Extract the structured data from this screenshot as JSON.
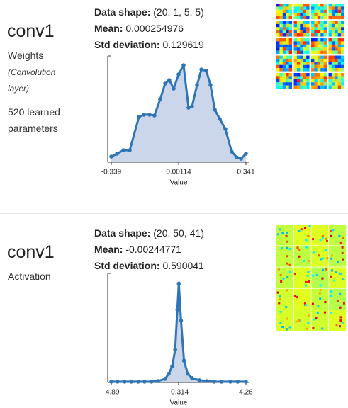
{
  "panels": [
    {
      "name": "conv1",
      "kind": "Weights",
      "note": "(Convolution layer)",
      "params": "520 learned parameters",
      "stats": [
        {
          "label": "Data shape:",
          "value": "(20, 1, 5, 5)"
        },
        {
          "label": "Mean:",
          "value": "0.000254976"
        },
        {
          "label": "Std deviation:",
          "value": "0.129619"
        }
      ]
    },
    {
      "name": "conv1",
      "kind": "Activation",
      "stats": [
        {
          "label": "Data shape:",
          "value": "(20, 50, 41)"
        },
        {
          "label": "Mean:",
          "value": "-0.00244771"
        },
        {
          "label": "Std deviation:",
          "value": "0.590041"
        }
      ]
    }
  ],
  "chart_data": [
    {
      "type": "area",
      "xlabel": "Value",
      "color": "#2e75b6",
      "fill": "#ccd6ea",
      "xlim": [
        -0.339,
        0.341
      ],
      "xticks": [
        -0.339,
        0.00114,
        0.341
      ],
      "ylim": [
        0,
        100
      ],
      "x": [
        -0.339,
        -0.31,
        -0.278,
        -0.246,
        -0.199,
        -0.174,
        -0.146,
        -0.121,
        -0.092,
        -0.067,
        -0.046,
        -0.024,
        0.001,
        0.026,
        0.051,
        0.069,
        0.094,
        0.116,
        0.141,
        0.162,
        0.184,
        0.209,
        0.237,
        0.269,
        0.294,
        0.316,
        0.341
      ],
      "values": [
        5.3,
        8,
        11.3,
        11.3,
        42.7,
        44.7,
        44.7,
        44,
        59.3,
        74,
        77.3,
        69.3,
        82.7,
        91.3,
        51.3,
        52.7,
        72.7,
        87.3,
        86,
        72.7,
        49.3,
        40.7,
        31.3,
        10,
        4.7,
        3.3,
        8
      ]
    },
    {
      "type": "area",
      "xlabel": "Value",
      "color": "#2e75b6",
      "fill": "#ccd6ea",
      "xlim": [
        -4.89,
        4.26
      ],
      "xticks": [
        -4.89,
        -0.314,
        4.26
      ],
      "ylim": [
        0,
        100
      ],
      "x": [
        -4.89,
        -4.46,
        -3.98,
        -3.54,
        -3.06,
        -2.63,
        -2.15,
        -1.71,
        -1.23,
        -0.99,
        -0.75,
        -0.55,
        -0.4,
        -0.3,
        -0.15,
        0.05,
        0.3,
        0.6,
        1.1,
        1.6,
        2.1,
        2.6,
        3.2,
        3.7,
        4.26
      ],
      "values": [
        0.7,
        0.7,
        0.7,
        0.7,
        0.7,
        0.7,
        0.7,
        1.3,
        3.3,
        8,
        14.7,
        30,
        66.7,
        90.7,
        56.7,
        20,
        8,
        4,
        2,
        1.3,
        0.7,
        0.7,
        0.7,
        0.7,
        0.7
      ]
    }
  ]
}
